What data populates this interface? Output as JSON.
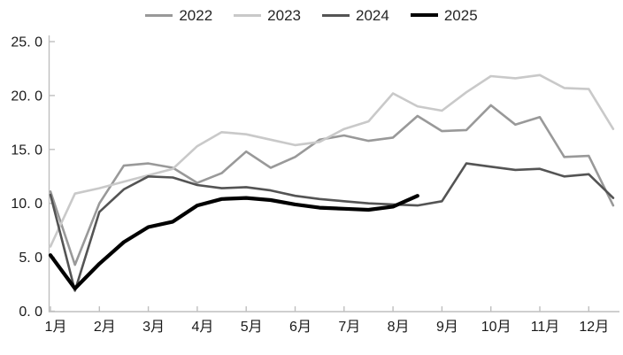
{
  "chart_data": {
    "type": "line",
    "title": "",
    "xlabel": "",
    "ylabel": "",
    "ylim": [
      0,
      25
    ],
    "xlim": [
      1,
      12.5
    ],
    "grid": false,
    "legend_position": "top",
    "axis_color": "#bfbfbf",
    "text_color": "#1a1a1a",
    "y_ticks": [
      "0. 0",
      "5. 0",
      "10. 0",
      "15. 0",
      "20. 0",
      "25. 0"
    ],
    "categories": [
      "1月",
      "2月",
      "3月",
      "4月",
      "5月",
      "6月",
      "7月",
      "8月",
      "9月",
      "10月",
      "11月",
      "12月"
    ],
    "x": [
      1,
      1.5,
      2,
      2.5,
      3,
      3.5,
      4,
      4.5,
      5,
      5.5,
      6,
      6.5,
      7,
      7.5,
      8,
      8.5,
      9,
      9.5,
      10,
      10.5,
      11,
      11.5,
      12,
      12.5
    ],
    "series": [
      {
        "name": "2022",
        "color": "#999999",
        "width": 2.6,
        "values": [
          11.1,
          4.3,
          10.0,
          13.5,
          13.7,
          13.3,
          11.9,
          12.8,
          14.8,
          13.3,
          14.3,
          15.9,
          16.3,
          15.8,
          16.1,
          18.1,
          16.7,
          16.8,
          19.1,
          17.3,
          18.0,
          14.3,
          14.4,
          9.8
        ]
      },
      {
        "name": "2023",
        "color": "#c9c9c9",
        "width": 2.6,
        "values": [
          6.0,
          10.9,
          11.4,
          12.0,
          12.6,
          13.2,
          15.3,
          16.6,
          16.4,
          15.9,
          15.4,
          15.7,
          16.9,
          17.6,
          20.2,
          19.0,
          18.6,
          20.3,
          21.8,
          21.6,
          21.9,
          20.7,
          20.6,
          16.9
        ]
      },
      {
        "name": "2024",
        "color": "#545454",
        "width": 2.6,
        "values": [
          10.8,
          1.9,
          9.2,
          11.3,
          12.5,
          12.4,
          11.7,
          11.4,
          11.5,
          11.2,
          10.7,
          10.4,
          10.2,
          10.0,
          9.9,
          9.8,
          10.2,
          13.7,
          13.4,
          13.1,
          13.2,
          12.5,
          12.7,
          10.5
        ]
      },
      {
        "name": "2025",
        "color": "#000000",
        "width": 4.2,
        "values": [
          5.2,
          2.1,
          4.4,
          6.4,
          7.8,
          8.3,
          9.8,
          10.4,
          10.5,
          10.3,
          9.9,
          9.6,
          9.5,
          9.4,
          9.7,
          10.7
        ]
      }
    ]
  }
}
